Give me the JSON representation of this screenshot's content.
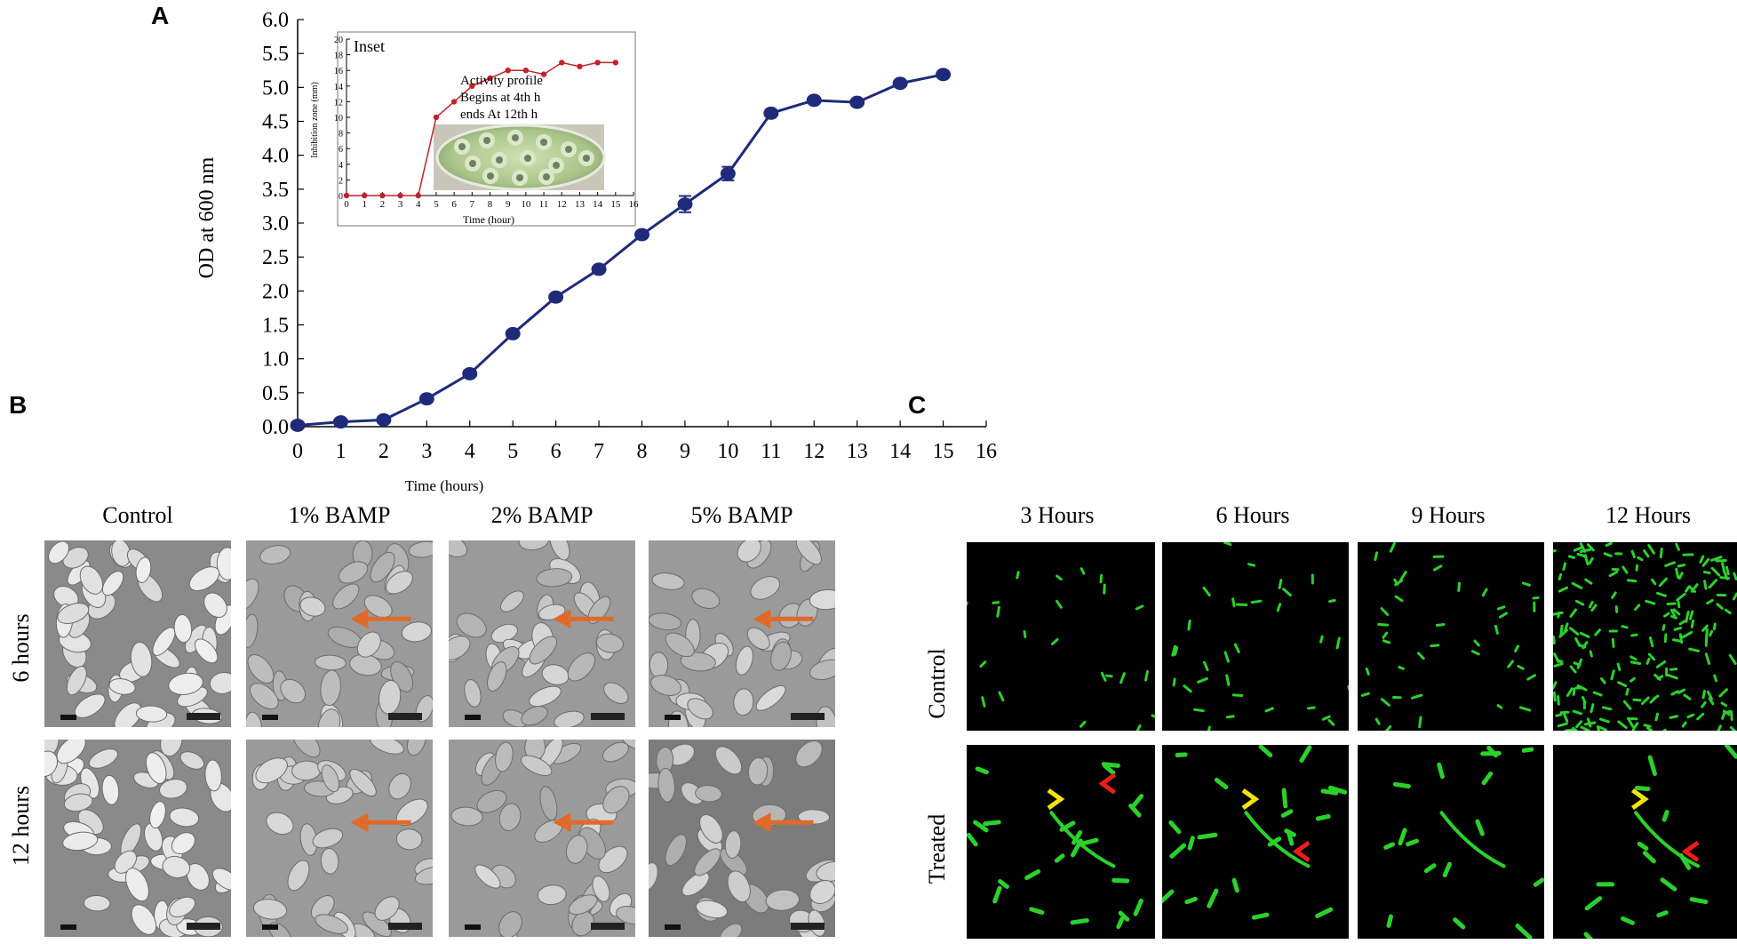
{
  "panels": {
    "a": "A",
    "b": "B",
    "c": "C"
  },
  "chart_data": [
    {
      "type": "line",
      "xlabel": "Time (hours)",
      "ylabel": "OD at 600 nm",
      "xlim": [
        0,
        16
      ],
      "ylim": [
        0.0,
        6.0
      ],
      "x_ticks": [
        "0",
        "1",
        "2",
        "3",
        "4",
        "5",
        "6",
        "7",
        "8",
        "9",
        "10",
        "11",
        "12",
        "13",
        "14",
        "15",
        "16"
      ],
      "y_ticks": [
        "0.0",
        "0.5",
        "1.0",
        "1.5",
        "2.0",
        "2.5",
        "3.0",
        "3.5",
        "4.0",
        "4.5",
        "5.0",
        "5.5",
        "6.0"
      ],
      "line_color": "#1f2a7a",
      "series": [
        {
          "x": [
            0,
            1,
            2,
            3,
            4,
            5,
            6,
            7,
            8,
            9,
            10,
            11,
            12,
            13,
            14,
            15
          ],
          "values": [
            0.02,
            0.07,
            0.1,
            0.41,
            0.78,
            1.37,
            1.91,
            2.32,
            2.83,
            3.28,
            3.73,
            4.62,
            4.81,
            4.78,
            5.06,
            5.19
          ]
        }
      ]
    },
    {
      "type": "line",
      "title": "Inset",
      "xlabel": "Time (hour)",
      "ylabel": "Inhibition zone (mm)",
      "xlim": [
        0,
        16
      ],
      "ylim": [
        0,
        20
      ],
      "x_ticks": [
        "0",
        "1",
        "2",
        "3",
        "4",
        "5",
        "6",
        "7",
        "8",
        "9",
        "10",
        "11",
        "12",
        "13",
        "14",
        "15",
        "16"
      ],
      "y_ticks": [
        "0",
        "2",
        "4",
        "6",
        "8",
        "10",
        "12",
        "14",
        "16",
        "18",
        "20"
      ],
      "line_color": "#c0232b",
      "annotation": [
        "Activity profile",
        "Begins at 4th h",
        "ends At 12th h"
      ],
      "series": [
        {
          "x": [
            0,
            1,
            2,
            3,
            4,
            5,
            6,
            7,
            8,
            9,
            10,
            11,
            12,
            13,
            14,
            15
          ],
          "values": [
            0,
            0,
            0,
            0,
            0,
            10,
            12,
            14,
            15,
            16,
            16,
            15.5,
            17,
            16.5,
            17,
            17
          ]
        }
      ]
    }
  ],
  "panel_b": {
    "columns": [
      "Control",
      "1% BAMP",
      "2% BAMP",
      "5% BAMP"
    ],
    "rows": [
      "6 hours",
      "12 hours"
    ],
    "arrow_color": "#e06a2a"
  },
  "panel_c": {
    "columns": [
      "3 Hours",
      "6 Hours",
      "9 Hours",
      "12 Hours"
    ],
    "rows": [
      "Control",
      "Treated"
    ],
    "cell_color": "#2bd12b",
    "marker_yellow": "#f2e400",
    "marker_red": "#ee1c1c"
  }
}
